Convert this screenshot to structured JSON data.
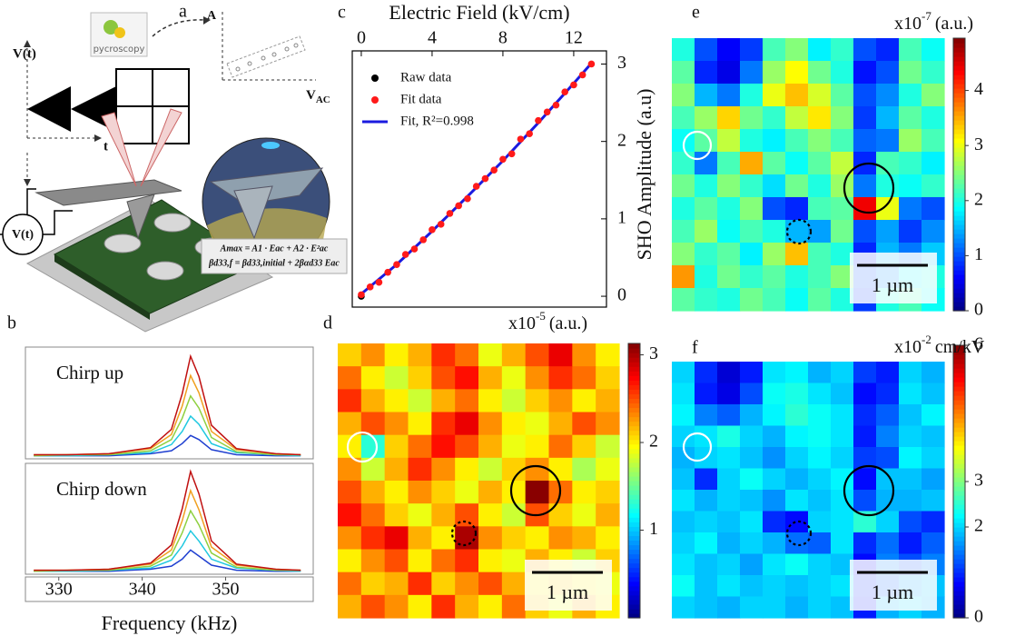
{
  "panel_a": {
    "panel_label": "a",
    "signal_label": "V(t)",
    "time_label": "t",
    "amplitude_label": "A",
    "vac_label": {
      "main": "V",
      "sub": "AC"
    },
    "logo": "pycroscopy",
    "source_label": "V(t)",
    "equation_1": "Amax = A1 · Eac + A2 · E²ac",
    "equation_2": "βd33,f = βd33,initial + 2βαd33 Eac"
  },
  "chart_data": [
    {
      "type": "line",
      "panel_label": "b",
      "annotation": "Chirp up",
      "x": [
        327,
        331,
        336,
        341,
        343.5,
        344.8,
        345.8,
        346.8,
        348.3,
        351.3,
        356,
        359
      ],
      "xlim": [
        326,
        360.5
      ],
      "ylim": [
        0,
        1.1
      ],
      "series": [
        {
          "color": "#1f3fd0",
          "values": [
            0.03,
            0.03,
            0.03,
            0.05,
            0.08,
            0.15,
            0.23,
            0.19,
            0.09,
            0.04,
            0.03,
            0.03
          ]
        },
        {
          "color": "#1fc8e0",
          "values": [
            0.03,
            0.03,
            0.04,
            0.06,
            0.14,
            0.27,
            0.42,
            0.34,
            0.15,
            0.06,
            0.04,
            0.03
          ]
        },
        {
          "color": "#8fd040",
          "values": [
            0.03,
            0.04,
            0.04,
            0.08,
            0.19,
            0.4,
            0.62,
            0.5,
            0.21,
            0.07,
            0.04,
            0.04
          ]
        },
        {
          "color": "#f0a020",
          "values": [
            0.04,
            0.04,
            0.05,
            0.1,
            0.24,
            0.52,
            0.82,
            0.65,
            0.27,
            0.09,
            0.05,
            0.04
          ]
        },
        {
          "color": "#c01010",
          "values": [
            0.04,
            0.04,
            0.05,
            0.11,
            0.29,
            0.64,
            1.01,
            0.81,
            0.33,
            0.1,
            0.05,
            0.04
          ]
        }
      ]
    },
    {
      "type": "line",
      "annotation": "Chirp down",
      "xlabel": "Frequency (kHz)",
      "x": [
        327,
        331,
        336,
        341,
        343.5,
        344.8,
        345.8,
        346.8,
        348.3,
        351.3,
        356,
        359
      ],
      "xlim": [
        326,
        360.5
      ],
      "xticks": [
        330,
        340,
        350
      ],
      "ylim": [
        0,
        1.1
      ],
      "series": [
        {
          "color": "#1f3fd0",
          "values": [
            0.03,
            0.03,
            0.03,
            0.05,
            0.08,
            0.15,
            0.24,
            0.18,
            0.09,
            0.04,
            0.03,
            0.03
          ]
        },
        {
          "color": "#1fc8e0",
          "values": [
            0.03,
            0.03,
            0.04,
            0.06,
            0.14,
            0.28,
            0.43,
            0.33,
            0.15,
            0.06,
            0.04,
            0.03
          ]
        },
        {
          "color": "#8fd040",
          "values": [
            0.03,
            0.04,
            0.04,
            0.08,
            0.19,
            0.41,
            0.63,
            0.49,
            0.21,
            0.07,
            0.04,
            0.04
          ]
        },
        {
          "color": "#f0a020",
          "values": [
            0.04,
            0.04,
            0.05,
            0.1,
            0.24,
            0.53,
            0.83,
            0.64,
            0.27,
            0.09,
            0.05,
            0.04
          ]
        },
        {
          "color": "#c01010",
          "values": [
            0.04,
            0.04,
            0.05,
            0.11,
            0.29,
            0.65,
            1.02,
            0.8,
            0.33,
            0.1,
            0.05,
            0.04
          ]
        }
      ]
    },
    {
      "type": "scatter",
      "panel_label": "c",
      "xlabel": "Electric Field (kV/cm)",
      "ylabel": "SHO Amplitude (a.u)",
      "xlim": [
        -0.51,
        13.85
      ],
      "xticks": [
        0,
        4,
        8,
        12
      ],
      "ylim": [
        -0.14,
        3.17
      ],
      "yticks": [
        0,
        1,
        2,
        3
      ],
      "series": [
        {
          "name": "Raw data",
          "color": "#000000",
          "style": "points",
          "x": [
            0
          ],
          "values": [
            0
          ]
        },
        {
          "name": "Fit data",
          "color": "#ff1a1a",
          "style": "points",
          "x": [
            0,
            0.5,
            1,
            1.5,
            2,
            2.5,
            3,
            3.5,
            4,
            4.5,
            5,
            5.5,
            6,
            6.5,
            7,
            7.5,
            8,
            8.5,
            9,
            9.5,
            10,
            10.5,
            11,
            11.5,
            12,
            12.5,
            13
          ],
          "values": [
            0.02,
            0.12,
            0.18,
            0.31,
            0.41,
            0.54,
            0.61,
            0.73,
            0.86,
            0.93,
            1.07,
            1.17,
            1.26,
            1.42,
            1.52,
            1.63,
            1.77,
            1.84,
            2.03,
            2.1,
            2.27,
            2.38,
            2.47,
            2.64,
            2.73,
            2.86,
            3.0
          ]
        },
        {
          "name": "Fit, R²=0.998",
          "color": "#1a1adf",
          "style": "line",
          "x": [
            0,
            2,
            4,
            6,
            8,
            10,
            12,
            13
          ],
          "values": [
            0.03,
            0.41,
            0.84,
            1.29,
            1.75,
            2.24,
            2.75,
            3.01
          ]
        }
      ]
    },
    {
      "type": "heatmap",
      "panel_label": "d",
      "colorbar_label": {
        "base": "x10",
        "exponent": "-5",
        "unit": "(a.u.)"
      },
      "scalebar": "1 µm",
      "colormap": "jet",
      "zlim": [
        0,
        3.13
      ],
      "zticks": [
        1,
        2,
        3
      ],
      "z": [
        [
          2.1,
          2.3,
          2.0,
          2.2,
          2.6,
          2.4,
          1.9,
          2.2,
          2.5,
          2.8,
          2.3,
          2.0
        ],
        [
          2.4,
          2.0,
          1.8,
          2.1,
          2.5,
          2.7,
          2.2,
          1.9,
          2.3,
          2.6,
          2.4,
          2.1
        ],
        [
          2.6,
          2.2,
          2.0,
          1.8,
          2.2,
          2.4,
          2.0,
          1.8,
          2.1,
          2.3,
          2.0,
          2.2
        ],
        [
          2.2,
          2.5,
          2.3,
          2.0,
          2.6,
          2.8,
          2.3,
          2.0,
          1.9,
          2.2,
          2.5,
          2.3
        ],
        [
          2.0,
          1.3,
          2.1,
          2.4,
          2.7,
          2.5,
          2.2,
          1.9,
          2.0,
          2.4,
          2.1,
          1.8
        ],
        [
          2.3,
          1.8,
          2.2,
          2.6,
          2.3,
          2.0,
          1.8,
          2.1,
          2.3,
          2.0,
          1.7,
          1.9
        ],
        [
          2.5,
          2.2,
          2.0,
          2.3,
          2.1,
          1.9,
          2.2,
          2.0,
          3.1,
          2.4,
          2.0,
          2.1
        ],
        [
          2.7,
          2.4,
          2.1,
          1.9,
          2.2,
          2.5,
          2.0,
          1.8,
          2.5,
          2.1,
          1.9,
          2.2
        ],
        [
          2.3,
          2.6,
          2.8,
          2.2,
          2.0,
          3.0,
          2.3,
          2.1,
          2.0,
          2.3,
          2.2,
          2.0
        ],
        [
          2.0,
          2.3,
          2.5,
          2.0,
          2.4,
          2.6,
          2.0,
          1.9,
          2.2,
          2.0,
          1.8,
          2.1
        ],
        [
          2.4,
          2.1,
          2.2,
          2.6,
          2.1,
          2.3,
          2.5,
          2.2,
          2.0,
          2.1,
          2.0,
          1.9
        ],
        [
          2.2,
          2.5,
          2.3,
          2.0,
          2.6,
          2.2,
          2.0,
          2.4,
          2.1,
          1.9,
          2.2,
          2.0
        ]
      ]
    },
    {
      "type": "heatmap",
      "panel_label": "e",
      "colorbar_label": {
        "base": "x10",
        "exponent": "-7",
        "unit": "(a.u.)"
      },
      "scalebar": "1 µm",
      "colormap": "jet",
      "zlim": [
        0,
        4.95
      ],
      "zticks": [
        0,
        1,
        2,
        3,
        4
      ],
      "z": [
        [
          2.0,
          1.0,
          0.6,
          0.9,
          2.2,
          2.5,
          1.8,
          2.1,
          1.0,
          0.8,
          2.2,
          1.9
        ],
        [
          2.3,
          0.8,
          0.5,
          1.2,
          2.6,
          3.1,
          2.4,
          2.0,
          0.7,
          1.0,
          2.4,
          2.1
        ],
        [
          2.5,
          1.5,
          1.2,
          2.0,
          3.0,
          3.4,
          2.9,
          2.3,
          1.0,
          1.3,
          2.0,
          2.5
        ],
        [
          2.2,
          2.6,
          3.3,
          2.4,
          2.1,
          2.8,
          3.2,
          2.5,
          0.9,
          1.5,
          2.3,
          2.0
        ],
        [
          1.9,
          2.3,
          2.8,
          2.0,
          1.8,
          2.2,
          2.5,
          2.2,
          1.1,
          1.2,
          2.6,
          2.2
        ],
        [
          2.1,
          1.2,
          2.2,
          3.5,
          2.3,
          1.9,
          2.3,
          2.8,
          0.8,
          2.2,
          2.1,
          1.8
        ],
        [
          2.4,
          2.0,
          2.5,
          2.1,
          1.7,
          2.4,
          2.0,
          2.6,
          1.2,
          2.0,
          1.9,
          2.1
        ],
        [
          2.0,
          2.3,
          2.0,
          2.5,
          1.0,
          0.8,
          2.2,
          2.3,
          4.4,
          3.0,
          1.2,
          1.0
        ],
        [
          2.2,
          2.6,
          1.9,
          2.2,
          2.0,
          1.5,
          1.4,
          2.4,
          1.0,
          1.4,
          0.9,
          1.3
        ],
        [
          2.5,
          2.1,
          2.3,
          1.8,
          2.6,
          3.4,
          2.2,
          2.0,
          0.8,
          1.5,
          1.2,
          1.6
        ],
        [
          3.6,
          2.0,
          2.4,
          2.1,
          2.3,
          2.0,
          2.2,
          2.5,
          1.0,
          1.3,
          1.8,
          2.0
        ],
        [
          2.3,
          2.1,
          2.0,
          2.4,
          2.2,
          1.9,
          2.3,
          2.0,
          0.9,
          2.0,
          2.2,
          1.9
        ]
      ]
    },
    {
      "type": "heatmap",
      "panel_label": "f",
      "colorbar_label": {
        "base": "x10",
        "exponent": "-2",
        "unit": "cm/kV"
      },
      "scalebar": "1 µm",
      "colormap": "jet",
      "zlim": [
        0,
        6
      ],
      "zticks": [
        0,
        2,
        3,
        6
      ],
      "z": [
        [
          2.0,
          1.0,
          0.5,
          0.9,
          2.1,
          2.2,
          1.8,
          2.0,
          1.1,
          0.9,
          2.0,
          1.8
        ],
        [
          2.1,
          0.9,
          0.6,
          1.2,
          2.3,
          2.4,
          2.1,
          1.9,
          0.8,
          1.0,
          2.1,
          1.9
        ],
        [
          2.2,
          1.5,
          1.3,
          1.8,
          2.2,
          2.5,
          2.3,
          2.1,
          1.0,
          1.3,
          1.9,
          2.2
        ],
        [
          2.0,
          2.1,
          2.4,
          2.0,
          1.8,
          2.2,
          2.3,
          2.1,
          0.9,
          1.5,
          2.0,
          1.9
        ],
        [
          1.8,
          2.0,
          2.1,
          1.9,
          1.6,
          2.0,
          2.2,
          2.0,
          1.1,
          1.2,
          2.2,
          2.0
        ],
        [
          1.9,
          1.0,
          2.0,
          2.3,
          2.0,
          1.8,
          2.0,
          2.2,
          0.8,
          1.9,
          1.9,
          1.7
        ],
        [
          2.1,
          1.8,
          2.0,
          1.9,
          1.6,
          2.1,
          1.9,
          2.1,
          1.2,
          1.8,
          1.8,
          1.9
        ],
        [
          1.9,
          2.0,
          1.9,
          2.1,
          1.0,
          0.8,
          2.0,
          2.1,
          2.5,
          2.0,
          1.2,
          1.0
        ],
        [
          2.0,
          2.2,
          1.8,
          2.0,
          1.8,
          1.4,
          1.3,
          2.1,
          1.0,
          1.4,
          0.9,
          1.3
        ],
        [
          2.1,
          1.9,
          2.0,
          1.7,
          2.1,
          2.3,
          2.0,
          1.9,
          0.8,
          1.5,
          1.2,
          1.5
        ],
        [
          2.3,
          1.9,
          2.1,
          1.9,
          2.0,
          1.9,
          2.0,
          2.1,
          1.0,
          1.3,
          1.7,
          1.9
        ],
        [
          2.0,
          1.9,
          1.8,
          2.0,
          2.0,
          1.8,
          2.0,
          1.9,
          0.9,
          1.8,
          2.0,
          1.8
        ]
      ]
    }
  ]
}
